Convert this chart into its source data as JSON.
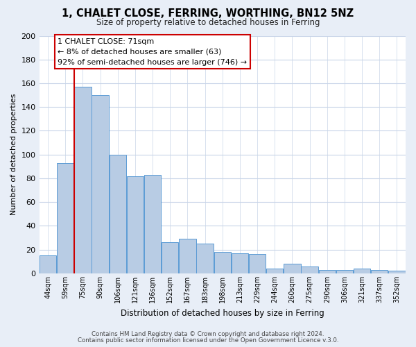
{
  "title": "1, CHALET CLOSE, FERRING, WORTHING, BN12 5NZ",
  "subtitle": "Size of property relative to detached houses in Ferring",
  "xlabel": "Distribution of detached houses by size in Ferring",
  "ylabel": "Number of detached properties",
  "categories": [
    "44sqm",
    "59sqm",
    "75sqm",
    "90sqm",
    "106sqm",
    "121sqm",
    "136sqm",
    "152sqm",
    "167sqm",
    "183sqm",
    "198sqm",
    "213sqm",
    "229sqm",
    "244sqm",
    "260sqm",
    "275sqm",
    "290sqm",
    "306sqm",
    "321sqm",
    "337sqm",
    "352sqm"
  ],
  "values": [
    15,
    93,
    157,
    150,
    100,
    82,
    83,
    26,
    29,
    25,
    18,
    17,
    16,
    4,
    8,
    6,
    3,
    3,
    4,
    3,
    2
  ],
  "bar_color": "#b8cce4",
  "bar_edge_color": "#5b9bd5",
  "bar_edge_width": 0.7,
  "red_line_index": 2.0,
  "ylim": [
    0,
    200
  ],
  "yticks": [
    0,
    20,
    40,
    60,
    80,
    100,
    120,
    140,
    160,
    180,
    200
  ],
  "annotation_title": "1 CHALET CLOSE: 71sqm",
  "annotation_line1": "← 8% of detached houses are smaller (63)",
  "annotation_line2": "92% of semi-detached houses are larger (746) →",
  "footer_line1": "Contains HM Land Registry data © Crown copyright and database right 2024.",
  "footer_line2": "Contains public sector information licensed under the Open Government Licence v.3.0.",
  "bg_color": "#e8eef7",
  "plot_bg_color": "#ffffff",
  "grid_color": "#c8d4e8"
}
